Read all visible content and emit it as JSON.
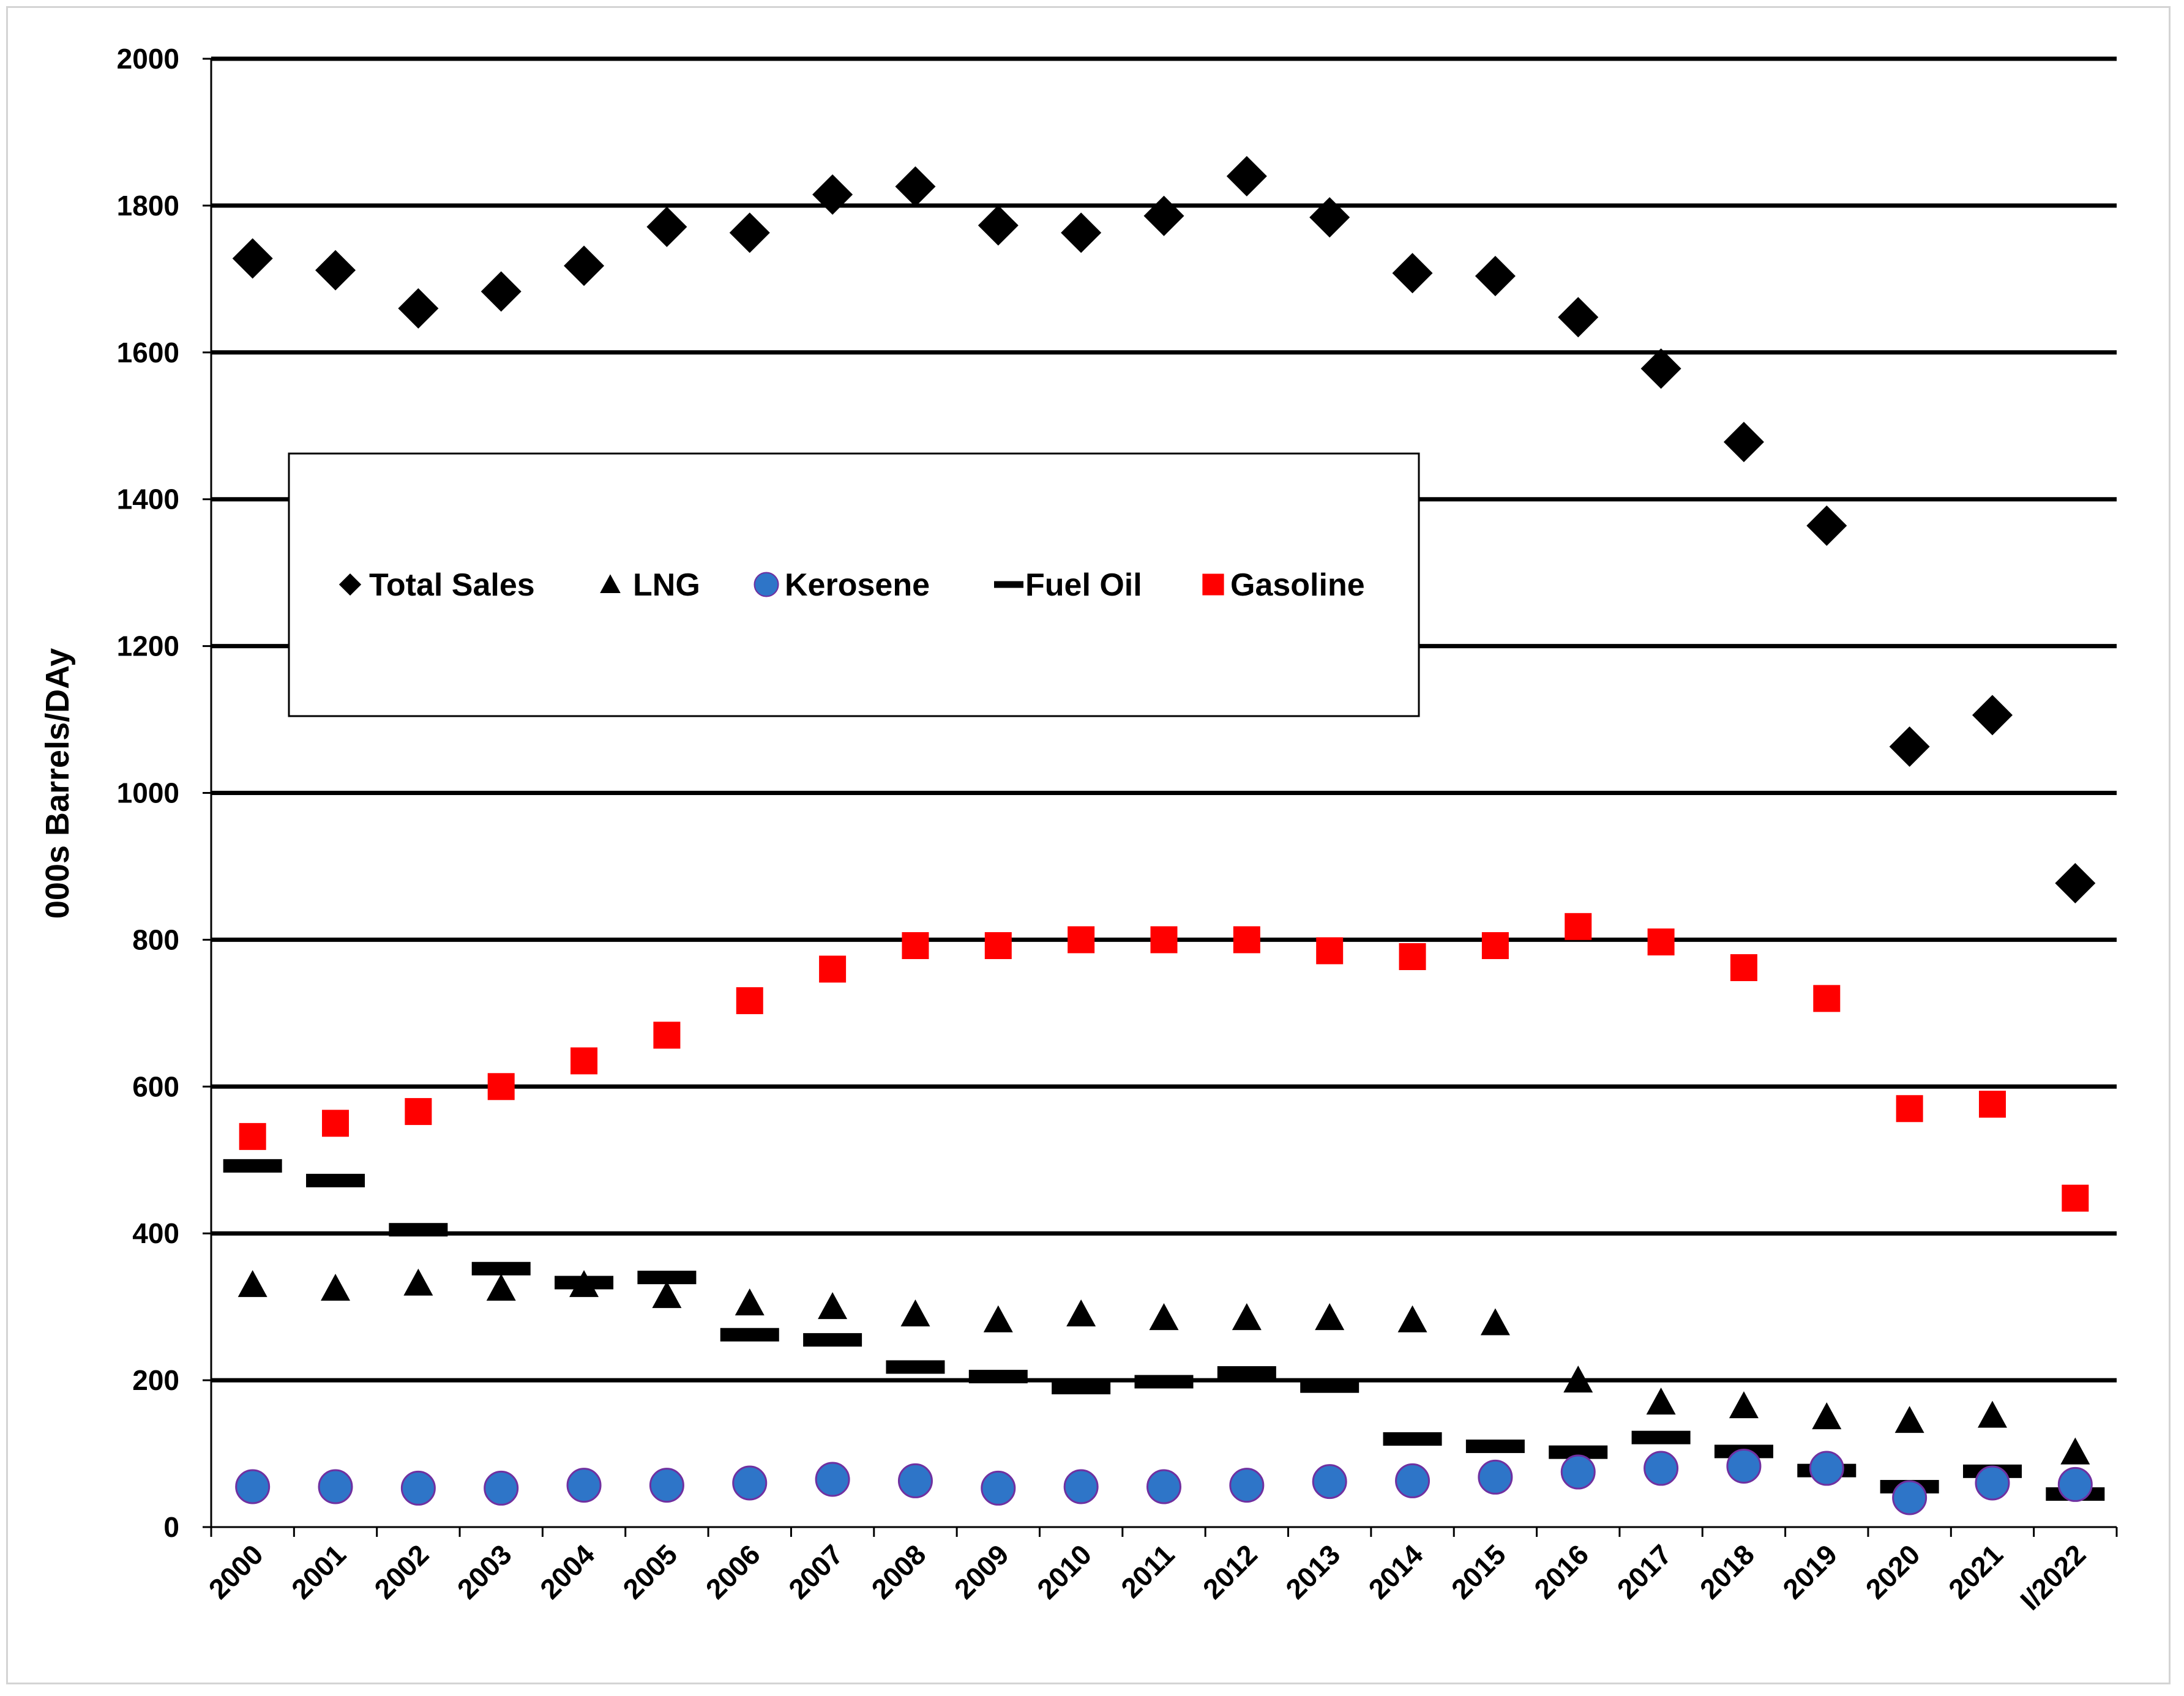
{
  "chart_data": {
    "type": "scatter",
    "title": "",
    "xlabel": "",
    "ylabel": "000s Barrels/DAy",
    "ylim": [
      0,
      2000
    ],
    "yticks": [
      0,
      200,
      400,
      600,
      800,
      1000,
      1200,
      1400,
      1600,
      1800,
      2000
    ],
    "grid": true,
    "legend_position": "upper-left inside plot",
    "categories": [
      "2000",
      "2001",
      "2002",
      "2003",
      "2004",
      "2005",
      "2006",
      "2007",
      "2008",
      "2009",
      "2010",
      "2011",
      "2012",
      "2013",
      "2014",
      "2015",
      "2016",
      "2017",
      "2018",
      "2019",
      "2020",
      "2021",
      "I/2022"
    ],
    "series": [
      {
        "name": "Total Sales",
        "marker": "diamond",
        "color": "#000000",
        "values": [
          1728,
          1712,
          1660,
          1683,
          1718,
          1771,
          1763,
          1815,
          1826,
          1773,
          1763,
          1786,
          1840,
          1784,
          1708,
          1704,
          1648,
          1578,
          1478,
          1364,
          1063,
          1106,
          877
        ]
      },
      {
        "name": "LNG",
        "marker": "triangle",
        "color": "#000000",
        "values": [
          330,
          325,
          332,
          325,
          330,
          315,
          305,
          300,
          290,
          282,
          290,
          285,
          285,
          285,
          282,
          278,
          200,
          170,
          165,
          150,
          145,
          152,
          102
        ]
      },
      {
        "name": "Kerosene",
        "marker": "circle",
        "color": "#2E75C8",
        "edge": "#7030A0",
        "values": [
          55,
          55,
          53,
          53,
          57,
          57,
          60,
          65,
          63,
          53,
          55,
          55,
          57,
          62,
          63,
          68,
          75,
          80,
          83,
          80,
          40,
          60,
          58
        ]
      },
      {
        "name": "Fuel Oil",
        "marker": "dash",
        "color": "#000000",
        "values": [
          492,
          472,
          405,
          352,
          333,
          340,
          262,
          255,
          218,
          205,
          190,
          198,
          210,
          192,
          120,
          110,
          102,
          122,
          103,
          77,
          55,
          76,
          45
        ]
      },
      {
        "name": "Gasoline",
        "marker": "square",
        "color": "#FF0000",
        "values": [
          532,
          550,
          566,
          600,
          635,
          670,
          717,
          760,
          792,
          792,
          800,
          800,
          800,
          785,
          777,
          792,
          818,
          797,
          762,
          720,
          570,
          576,
          448
        ]
      }
    ]
  }
}
